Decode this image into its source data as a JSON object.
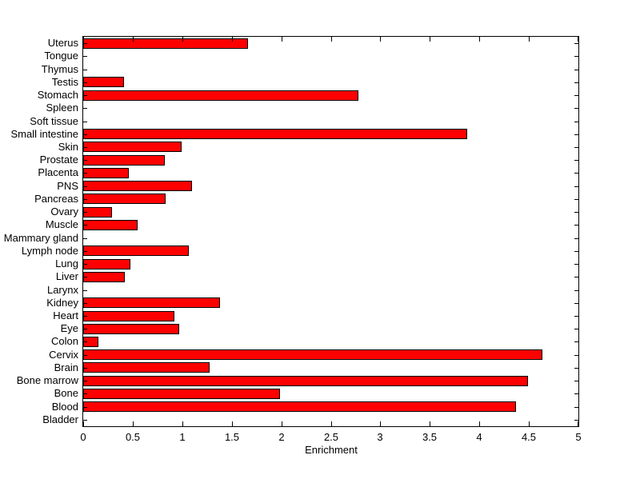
{
  "figure": {
    "background_color": "#ffffff",
    "axis_color": "#000000"
  },
  "chart_data": {
    "type": "bar",
    "orientation": "horizontal",
    "title": "",
    "xlabel": "Enrichment",
    "ylabel": "",
    "xlim": [
      0,
      5
    ],
    "xticks": [
      "0",
      "0.5",
      "1",
      "1.5",
      "2",
      "2.5",
      "3",
      "3.5",
      "4",
      "4.5",
      "5"
    ],
    "grid": false,
    "legend": null,
    "bar_color": "#ff0000",
    "bar_edge_color": "#000000",
    "categories": [
      "Uterus",
      "Tongue",
      "Thymus",
      "Testis",
      "Stomach",
      "Spleen",
      "Soft tissue",
      "Small intestine",
      "Skin",
      "Prostate",
      "Placenta",
      "PNS",
      "Pancreas",
      "Ovary",
      "Muscle",
      "Mammary gland",
      "Lymph node",
      "Lung",
      "Liver",
      "Larynx",
      "Kidney",
      "Heart",
      "Eye",
      "Colon",
      "Cervix",
      "Brain",
      "Bone marrow",
      "Bone",
      "Blood",
      "Bladder"
    ],
    "values": [
      1.66,
      0,
      0,
      0.41,
      2.78,
      0,
      0,
      3.88,
      0.99,
      0.82,
      0.46,
      1.1,
      0.83,
      0.29,
      0.55,
      0,
      1.07,
      0.48,
      0.42,
      0,
      1.38,
      0.92,
      0.97,
      0.15,
      4.64,
      1.28,
      4.49,
      1.99,
      4.37,
      0
    ]
  }
}
